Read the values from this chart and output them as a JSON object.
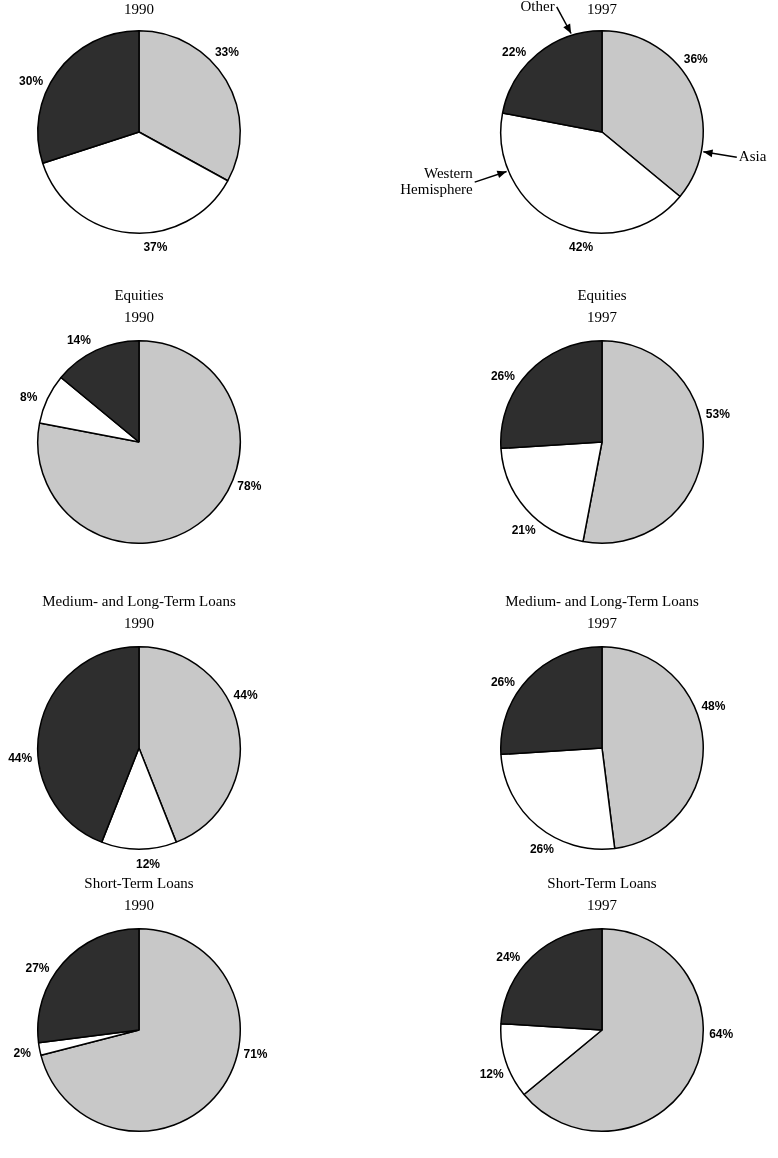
{
  "chart_data": [
    {
      "type": "pie",
      "title": "1990",
      "categories": [
        null,
        null,
        null
      ],
      "values": [
        33,
        37,
        30
      ],
      "value_labels": [
        "33%",
        "37%",
        "30%"
      ],
      "colors": [
        "#c8c8c8",
        "#ffffff",
        "#2e2e2e"
      ]
    },
    {
      "type": "pie",
      "title": "1997",
      "categories": [
        "Asia",
        "Western Hemisphere",
        "Other"
      ],
      "values": [
        36,
        42,
        22
      ],
      "value_labels": [
        "36%",
        "42%",
        "22%"
      ],
      "colors": [
        "#c8c8c8",
        "#ffffff",
        "#2e2e2e"
      ]
    },
    {
      "type": "pie",
      "title": "Equities",
      "subtitle": "1990",
      "categories": [
        null,
        null,
        null
      ],
      "values": [
        78,
        8,
        14
      ],
      "value_labels": [
        "78%",
        "8%",
        "14%"
      ],
      "colors": [
        "#c8c8c8",
        "#ffffff",
        "#2e2e2e"
      ]
    },
    {
      "type": "pie",
      "title": "Equities",
      "subtitle": "1997",
      "categories": [
        null,
        null,
        null
      ],
      "values": [
        53,
        21,
        26
      ],
      "value_labels": [
        "53%",
        "21%",
        "26%"
      ],
      "colors": [
        "#c8c8c8",
        "#ffffff",
        "#2e2e2e"
      ]
    },
    {
      "type": "pie",
      "title": "Medium- and Long-Term Loans",
      "subtitle": "1990",
      "categories": [
        null,
        null,
        null
      ],
      "values": [
        44,
        12,
        44
      ],
      "value_labels": [
        "44%",
        "12%",
        "44%"
      ],
      "colors": [
        "#c8c8c8",
        "#ffffff",
        "#2e2e2e"
      ]
    },
    {
      "type": "pie",
      "title": "Medium- and Long-Term Loans",
      "subtitle": "1997",
      "categories": [
        null,
        null,
        null
      ],
      "values": [
        48,
        26,
        26
      ],
      "value_labels": [
        "48%",
        "26%",
        "26%"
      ],
      "colors": [
        "#c8c8c8",
        "#ffffff",
        "#2e2e2e"
      ]
    },
    {
      "type": "pie",
      "title": "Short-Term Loans",
      "subtitle": "1990",
      "categories": [
        null,
        null,
        null
      ],
      "values": [
        71,
        2,
        27
      ],
      "value_labels": [
        "71%",
        "2%",
        "27%"
      ],
      "colors": [
        "#c8c8c8",
        "#ffffff",
        "#2e2e2e"
      ]
    },
    {
      "type": "pie",
      "title": "Short-Term Loans",
      "subtitle": "1997",
      "categories": [
        null,
        null,
        null
      ],
      "values": [
        64,
        12,
        24
      ],
      "value_labels": [
        "64%",
        "12%",
        "24%"
      ],
      "colors": [
        "#c8c8c8",
        "#ffffff",
        "#2e2e2e"
      ]
    }
  ]
}
